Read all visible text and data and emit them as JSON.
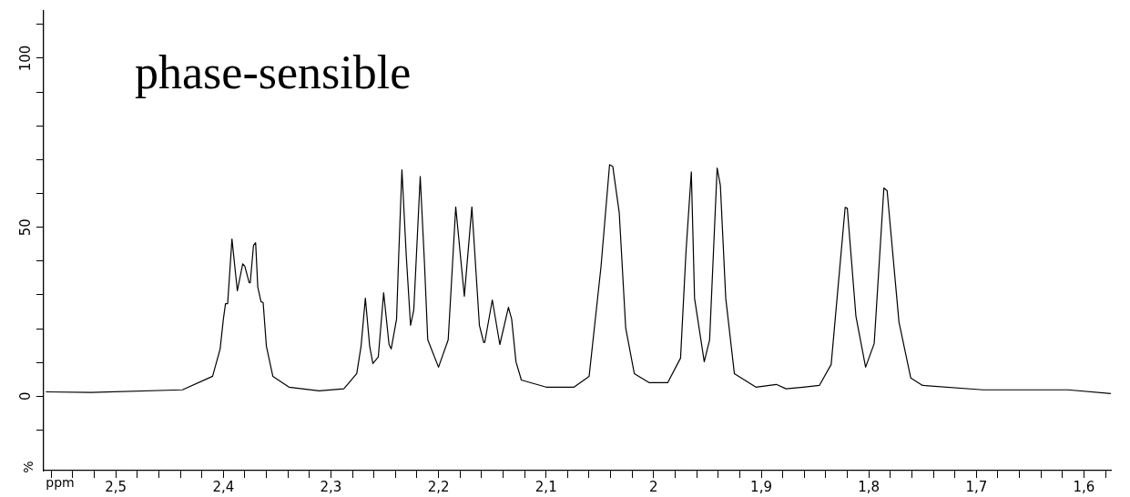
{
  "chart_data": {
    "type": "line",
    "title": "phase-sensible",
    "xlabel": "ppm",
    "ylabel": "%",
    "grid": false,
    "legend": false,
    "marker": "none",
    "line_style": "solid",
    "xlim": [
      2.567,
      1.575
    ],
    "ylim": [
      -22,
      114
    ],
    "xticks": [
      {
        "value": 2.56,
        "label": null
      },
      {
        "value": 2.54,
        "label": null
      },
      {
        "value": 2.52,
        "label": null
      },
      {
        "value": 2.5,
        "label": "2,5"
      },
      {
        "value": 2.48,
        "label": null
      },
      {
        "value": 2.46,
        "label": null
      },
      {
        "value": 2.44,
        "label": null
      },
      {
        "value": 2.42,
        "label": null
      },
      {
        "value": 2.4,
        "label": "2,4"
      },
      {
        "value": 2.38,
        "label": null
      },
      {
        "value": 2.36,
        "label": null
      },
      {
        "value": 2.34,
        "label": null
      },
      {
        "value": 2.32,
        "label": null
      },
      {
        "value": 2.3,
        "label": "2,3"
      },
      {
        "value": 2.28,
        "label": null
      },
      {
        "value": 2.26,
        "label": null
      },
      {
        "value": 2.24,
        "label": null
      },
      {
        "value": 2.22,
        "label": null
      },
      {
        "value": 2.2,
        "label": "2,2"
      },
      {
        "value": 2.18,
        "label": null
      },
      {
        "value": 2.16,
        "label": null
      },
      {
        "value": 2.14,
        "label": null
      },
      {
        "value": 2.12,
        "label": null
      },
      {
        "value": 2.1,
        "label": "2,1"
      },
      {
        "value": 2.08,
        "label": null
      },
      {
        "value": 2.06,
        "label": null
      },
      {
        "value": 2.04,
        "label": null
      },
      {
        "value": 2.02,
        "label": null
      },
      2,
      {
        "value": 1.98,
        "label": null
      },
      {
        "value": 1.96,
        "label": null
      },
      {
        "value": 1.94,
        "label": null
      },
      {
        "value": 1.92,
        "label": null
      },
      {
        "value": 1.9,
        "label": "1,9"
      },
      {
        "value": 1.88,
        "label": null
      },
      {
        "value": 1.86,
        "label": null
      },
      {
        "value": 1.84,
        "label": null
      },
      {
        "value": 1.82,
        "label": null
      },
      {
        "value": 1.8,
        "label": "1,8"
      },
      {
        "value": 1.78,
        "label": null
      },
      {
        "value": 1.76,
        "label": null
      },
      {
        "value": 1.74,
        "label": null
      },
      {
        "value": 1.72,
        "label": null
      },
      {
        "value": 1.7,
        "label": "1,7"
      },
      {
        "value": 1.68,
        "label": null
      },
      {
        "value": 1.66,
        "label": null
      },
      {
        "value": 1.64,
        "label": null
      },
      {
        "value": 1.62,
        "label": null
      },
      {
        "value": 1.6,
        "label": "1,6"
      },
      {
        "value": 1.58,
        "label": null
      }
    ],
    "yticks": [
      {
        "value": -10,
        "label": null
      },
      0,
      {
        "value": 10,
        "label": null
      },
      {
        "value": 20,
        "label": null
      },
      {
        "value": 30,
        "label": null
      },
      {
        "value": 40,
        "label": null
      },
      50,
      {
        "value": 60,
        "label": null
      },
      {
        "value": 70,
        "label": null
      },
      {
        "value": 80,
        "label": null
      },
      {
        "value": 90,
        "label": null
      },
      100,
      {
        "value": 110,
        "label": null
      }
    ],
    "series": [
      {
        "color": "#000000",
        "x": [
          2.565,
          2.523,
          2.438,
          2.41,
          2.403,
          2.4,
          2.398,
          2.396,
          2.392,
          2.387,
          2.382,
          2.38,
          2.376,
          2.375,
          2.372,
          2.37,
          2.368,
          2.365,
          2.363,
          2.36,
          2.354,
          2.339,
          2.311,
          2.288,
          2.276,
          2.272,
          2.268,
          2.264,
          2.261,
          2.256,
          2.251,
          2.246,
          2.244,
          2.239,
          2.237,
          2.234,
          2.23,
          2.226,
          2.223,
          2.217,
          2.213,
          2.21,
          2.2,
          2.191,
          2.187,
          2.184,
          2.176,
          2.169,
          2.162,
          2.158,
          2.157,
          2.15,
          2.143,
          2.135,
          2.132,
          2.128,
          2.123,
          2.1,
          2.074,
          2.06,
          2.049,
          2.041,
          2.038,
          2.032,
          2.026,
          2.018,
          2.004,
          1.987,
          1.975,
          1.97,
          1.965,
          1.962,
          1.953,
          1.948,
          1.941,
          1.938,
          1.933,
          1.925,
          1.905,
          1.886,
          1.877,
          1.861,
          1.846,
          1.835,
          1.822,
          1.82,
          1.812,
          1.803,
          1.795,
          1.786,
          1.783,
          1.772,
          1.761,
          1.75,
          1.694,
          1.615,
          1.575
        ],
        "values": [
          1.3,
          1.1,
          1.9,
          5.9,
          14,
          22.8,
          27.4,
          27.4,
          46.5,
          31.2,
          39.2,
          38.4,
          33.6,
          33.6,
          44.6,
          45.4,
          32.3,
          28,
          27.7,
          14.8,
          5.9,
          2.7,
          1.6,
          2.2,
          6.7,
          14.8,
          29,
          14.8,
          9.7,
          11.6,
          30.6,
          15.3,
          14,
          22.8,
          41.7,
          67,
          41.7,
          21,
          25.5,
          65,
          39,
          16.7,
          8.6,
          16.7,
          39,
          56,
          29.6,
          56,
          21,
          15.9,
          15.9,
          28.5,
          15.3,
          26.3,
          22.8,
          10.2,
          4.8,
          2.7,
          2.7,
          5.9,
          38.2,
          68.5,
          68,
          54.3,
          20.2,
          6.7,
          4,
          4,
          11.3,
          42.5,
          66.4,
          29,
          10.2,
          16.7,
          67.5,
          62.4,
          29,
          6.7,
          2.7,
          3.5,
          2.2,
          2.7,
          3.2,
          9.4,
          55.9,
          55.6,
          23.7,
          8.6,
          15.6,
          61.6,
          60.8,
          22,
          5.4,
          3.2,
          1.9,
          1.9,
          0.8
        ]
      }
    ]
  }
}
